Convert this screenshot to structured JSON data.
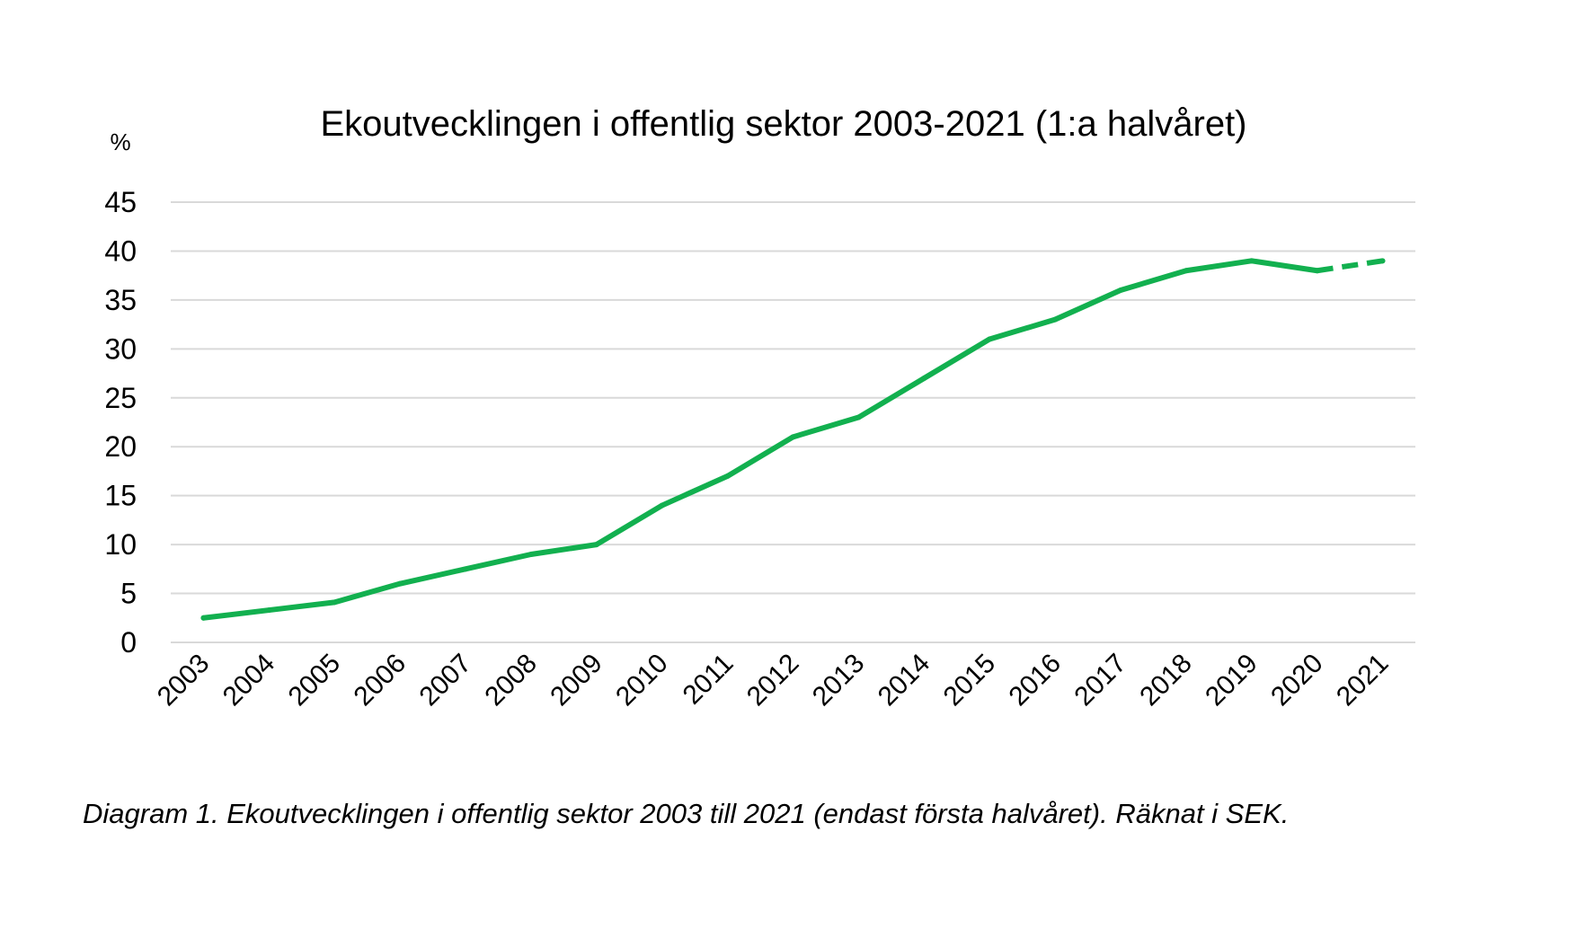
{
  "chart_data": {
    "type": "line",
    "title": "Ekoutvecklingen i offentlig sektor 2003-2021 (1:a halvåret)",
    "ylabel": "%",
    "xlabel": "",
    "x": [
      "2003",
      "2004",
      "2005",
      "2006",
      "2007",
      "2008",
      "2009",
      "2010",
      "2011",
      "2012",
      "2013",
      "2014",
      "2015",
      "2016",
      "2017",
      "2018",
      "2019",
      "2020",
      "2021"
    ],
    "series": [
      {
        "values": [
          2.5,
          3.3,
          4.1,
          6.0,
          7.5,
          9.0,
          10.0,
          14.0,
          17.0,
          21.0,
          23.0,
          27.0,
          31.0,
          33.0,
          36.0,
          38.0,
          39.0,
          38.0,
          39.0
        ],
        "dashed_from_index": 17,
        "color": "#12b04f"
      }
    ],
    "ylim": [
      0,
      45
    ],
    "yticks": [
      0,
      5,
      10,
      15,
      20,
      25,
      30,
      35,
      40,
      45
    ],
    "grid": true,
    "legend": "none"
  },
  "caption": "Diagram 1. Ekoutvecklingen i offentlig sektor 2003 till 2021 (endast första halvåret). Räknat i SEK."
}
